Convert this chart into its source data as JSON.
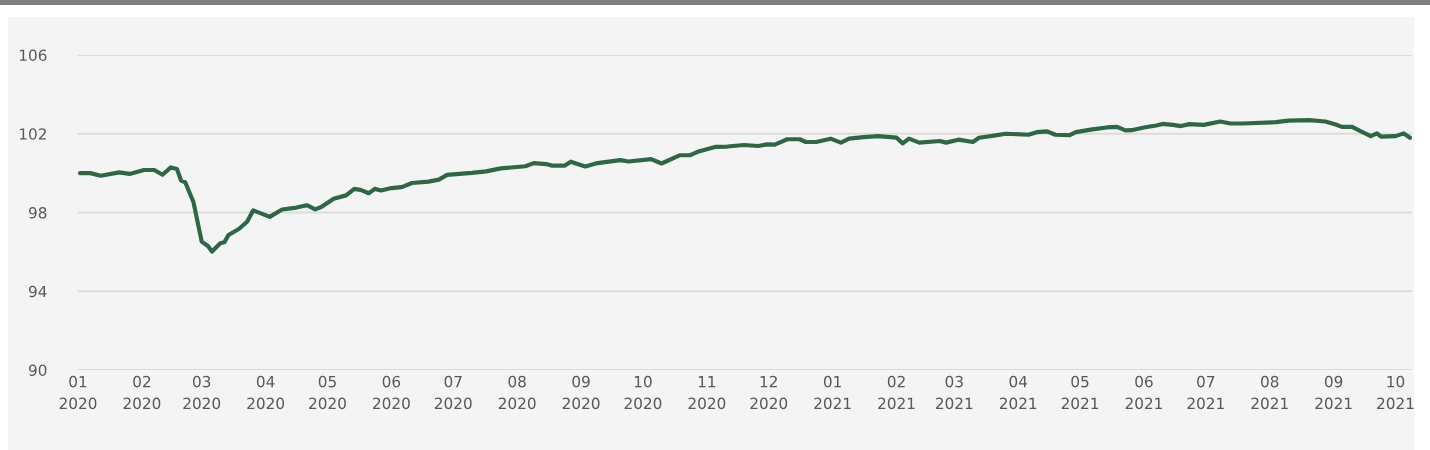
{
  "chart_data": {
    "type": "line",
    "x": [
      "2020-01-02",
      "2020-01-07",
      "2020-01-12",
      "2020-01-21",
      "2020-01-26",
      "2020-02-02",
      "2020-02-07",
      "2020-02-11",
      "2020-02-15",
      "2020-02-18",
      "2020-02-20",
      "2020-02-22",
      "2020-02-26",
      "2020-03-01",
      "2020-03-04",
      "2020-03-06",
      "2020-03-10",
      "2020-03-12",
      "2020-03-14",
      "2020-03-19",
      "2020-03-23",
      "2020-03-26",
      "2020-04-03",
      "2020-04-09",
      "2020-04-16",
      "2020-04-21",
      "2020-04-25",
      "2020-04-28",
      "2020-05-04",
      "2020-05-10",
      "2020-05-14",
      "2020-05-17",
      "2020-05-21",
      "2020-05-24",
      "2020-05-27",
      "2020-06-01",
      "2020-06-06",
      "2020-06-11",
      "2020-06-19",
      "2020-06-24",
      "2020-06-28",
      "2020-07-04",
      "2020-07-10",
      "2020-07-17",
      "2020-07-24",
      "2020-08-05",
      "2020-08-09",
      "2020-08-15",
      "2020-08-18",
      "2020-08-24",
      "2020-08-27",
      "2020-09-03",
      "2020-09-09",
      "2020-09-20",
      "2020-09-24",
      "2020-10-05",
      "2020-10-10",
      "2020-10-19",
      "2020-10-24",
      "2020-10-28",
      "2020-11-05",
      "2020-11-11",
      "2020-11-19",
      "2020-11-26",
      "2020-11-30",
      "2020-12-04",
      "2020-12-10",
      "2020-12-16",
      "2020-12-19",
      "2020-12-24",
      "2020-12-31",
      "2021-01-05",
      "2021-01-09",
      "2021-01-16",
      "2021-01-23",
      "2021-02-01",
      "2021-02-04",
      "2021-02-07",
      "2021-02-12",
      "2021-02-22",
      "2021-02-25",
      "2021-03-03",
      "2021-03-10",
      "2021-03-13",
      "2021-03-21",
      "2021-03-26",
      "2021-04-06",
      "2021-04-10",
      "2021-04-15",
      "2021-04-19",
      "2021-04-26",
      "2021-04-29",
      "2021-05-07",
      "2021-05-14",
      "2021-05-19",
      "2021-05-23",
      "2021-05-26",
      "2021-06-01",
      "2021-06-07",
      "2021-06-10",
      "2021-06-15",
      "2021-06-19",
      "2021-06-23",
      "2021-06-30",
      "2021-07-08",
      "2021-07-13",
      "2021-07-19",
      "2021-08-04",
      "2021-08-10",
      "2021-08-20",
      "2021-08-28",
      "2021-09-02",
      "2021-09-05",
      "2021-09-10",
      "2021-09-14",
      "2021-09-19",
      "2021-09-22",
      "2021-09-24",
      "2021-10-01",
      "2021-10-05",
      "2021-10-08"
    ],
    "series": [
      {
        "color": "#2e6748",
        "values": [
          100.0,
          100.0,
          99.87,
          100.04,
          99.96,
          100.16,
          100.16,
          99.92,
          100.29,
          100.21,
          99.62,
          99.54,
          98.53,
          96.52,
          96.3,
          96.02,
          96.44,
          96.49,
          96.86,
          97.16,
          97.53,
          98.11,
          97.78,
          98.15,
          98.25,
          98.37,
          98.16,
          98.28,
          98.7,
          98.87,
          99.2,
          99.15,
          98.98,
          99.2,
          99.12,
          99.24,
          99.29,
          99.5,
          99.57,
          99.67,
          99.91,
          99.96,
          100.01,
          100.09,
          100.24,
          100.35,
          100.51,
          100.46,
          100.38,
          100.38,
          100.58,
          100.34,
          100.51,
          100.66,
          100.59,
          100.71,
          100.49,
          100.91,
          100.91,
          101.1,
          101.33,
          101.35,
          101.43,
          101.38,
          101.46,
          101.45,
          101.72,
          101.72,
          101.58,
          101.58,
          101.75,
          101.55,
          101.75,
          101.83,
          101.88,
          101.8,
          101.51,
          101.75,
          101.55,
          101.63,
          101.55,
          101.7,
          101.58,
          101.8,
          101.92,
          102.0,
          101.95,
          102.08,
          102.12,
          101.95,
          101.93,
          102.08,
          102.22,
          102.32,
          102.35,
          102.17,
          102.18,
          102.32,
          102.42,
          102.5,
          102.45,
          102.39,
          102.49,
          102.45,
          102.62,
          102.52,
          102.52,
          102.59,
          102.67,
          102.69,
          102.62,
          102.47,
          102.35,
          102.35,
          102.13,
          101.88,
          102.02,
          101.85,
          101.88,
          102.02,
          101.8
        ]
      }
    ],
    "xlim": [
      "2020-01-01",
      "2021-10-09"
    ],
    "xticks": [
      {
        "value": "2020-01-01",
        "label": "01\n2020"
      },
      {
        "value": "2020-02-01",
        "label": "02\n2020"
      },
      {
        "value": "2020-03-01",
        "label": "03\n2020"
      },
      {
        "value": "2020-04-01",
        "label": "04\n2020"
      },
      {
        "value": "2020-05-01",
        "label": "05\n2020"
      },
      {
        "value": "2020-06-01",
        "label": "06\n2020"
      },
      {
        "value": "2020-07-01",
        "label": "07\n2020"
      },
      {
        "value": "2020-08-01",
        "label": "08\n2020"
      },
      {
        "value": "2020-09-01",
        "label": "09\n2020"
      },
      {
        "value": "2020-10-01",
        "label": "10\n2020"
      },
      {
        "value": "2020-11-01",
        "label": "11\n2020"
      },
      {
        "value": "2020-12-01",
        "label": "12\n2020"
      },
      {
        "value": "2021-01-01",
        "label": "01\n2021"
      },
      {
        "value": "2021-02-01",
        "label": "02\n2021"
      },
      {
        "value": "2021-03-01",
        "label": "03\n2021"
      },
      {
        "value": "2021-04-01",
        "label": "04\n2021"
      },
      {
        "value": "2021-05-01",
        "label": "05\n2021"
      },
      {
        "value": "2021-06-01",
        "label": "06\n2021"
      },
      {
        "value": "2021-07-01",
        "label": "07\n2021"
      },
      {
        "value": "2021-08-01",
        "label": "08\n2021"
      },
      {
        "value": "2021-09-01",
        "label": "09\n2021"
      },
      {
        "value": "2021-10-01",
        "label": "10\n2021"
      }
    ],
    "ylim": [
      90,
      106
    ],
    "yticks": [
      90,
      94,
      98,
      102,
      106
    ],
    "grid": "y",
    "marker": "none",
    "line_style": "solid"
  }
}
